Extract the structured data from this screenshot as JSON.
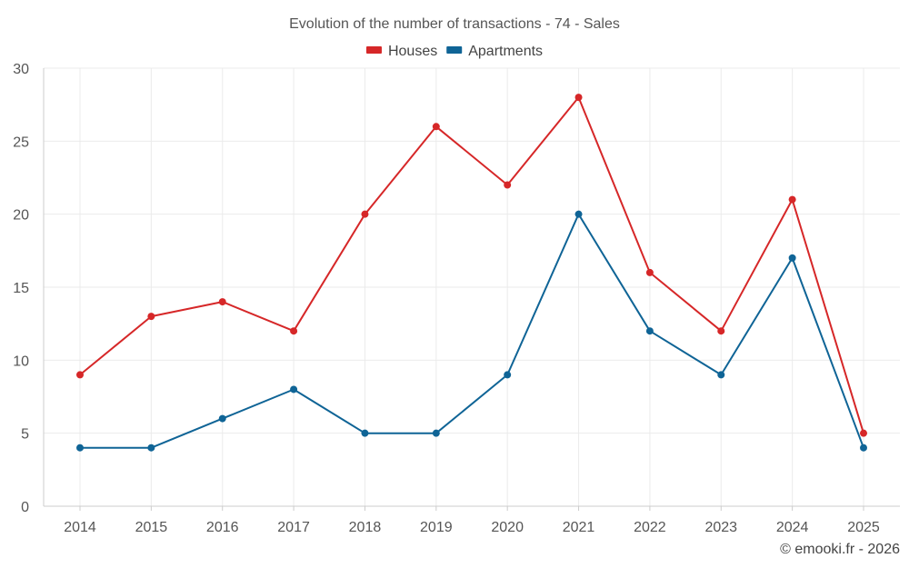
{
  "chart_data": {
    "type": "line",
    "title": "Evolution of the number of transactions - 74 - Sales",
    "xlabel": "",
    "ylabel": "",
    "categories": [
      "2014",
      "2015",
      "2016",
      "2017",
      "2018",
      "2019",
      "2020",
      "2021",
      "2022",
      "2023",
      "2024",
      "2025"
    ],
    "ylim": [
      0,
      30
    ],
    "yticks": [
      0,
      5,
      10,
      15,
      20,
      25,
      30
    ],
    "grid": true,
    "legend_position": "top-center",
    "series": [
      {
        "name": "Houses",
        "color": "#d62728",
        "values": [
          9,
          13,
          14,
          12,
          20,
          26,
          22,
          28,
          16,
          12,
          21,
          5
        ]
      },
      {
        "name": "Apartments",
        "color": "#0f6496",
        "values": [
          4,
          4,
          6,
          8,
          5,
          5,
          9,
          20,
          12,
          9,
          17,
          4
        ]
      }
    ],
    "credit": "© emooki.fr - 2026"
  }
}
